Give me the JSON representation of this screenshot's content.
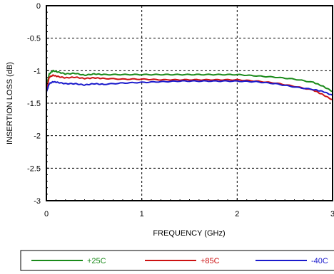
{
  "chart_data": {
    "type": "line",
    "xlabel": "FREQUENCY (GHz)",
    "ylabel": "INSERTION LOSS (dB)",
    "xlim": [
      0,
      3
    ],
    "ylim": [
      -3,
      0
    ],
    "x_ticks": [
      "0",
      "1",
      "2",
      "3"
    ],
    "y_ticks": [
      "0",
      "-0.5",
      "-1",
      "-1.5",
      "-2",
      "-2.5",
      "-3"
    ],
    "grid": true,
    "legend_position": "bottom",
    "series": [
      {
        "name": "+25C",
        "color": "#1a8a1a",
        "x": [
          0.0,
          0.03,
          0.07,
          0.12,
          0.2,
          0.3,
          0.4,
          0.5,
          0.6,
          0.8,
          1.0,
          1.2,
          1.4,
          1.6,
          1.8,
          2.0,
          2.2,
          2.4,
          2.6,
          2.8,
          2.9,
          3.0
        ],
        "y": [
          -1.25,
          -1.05,
          -1.0,
          -1.02,
          -1.05,
          -1.04,
          -1.07,
          -1.05,
          -1.06,
          -1.06,
          -1.06,
          -1.06,
          -1.06,
          -1.06,
          -1.06,
          -1.06,
          -1.08,
          -1.1,
          -1.13,
          -1.18,
          -1.24,
          -1.32
        ]
      },
      {
        "name": "+85C",
        "color": "#cc1111",
        "x": [
          0.0,
          0.03,
          0.07,
          0.12,
          0.2,
          0.3,
          0.4,
          0.5,
          0.6,
          0.8,
          1.0,
          1.2,
          1.4,
          1.6,
          1.8,
          2.0,
          2.2,
          2.4,
          2.6,
          2.8,
          2.9,
          3.0
        ],
        "y": [
          -1.3,
          -1.1,
          -1.07,
          -1.09,
          -1.11,
          -1.1,
          -1.12,
          -1.11,
          -1.12,
          -1.13,
          -1.13,
          -1.14,
          -1.14,
          -1.14,
          -1.14,
          -1.14,
          -1.16,
          -1.19,
          -1.24,
          -1.3,
          -1.37,
          -1.45
        ]
      },
      {
        "name": "-40C",
        "color": "#1a1acc",
        "x": [
          0.0,
          0.03,
          0.07,
          0.12,
          0.2,
          0.3,
          0.4,
          0.5,
          0.6,
          0.8,
          1.0,
          1.2,
          1.4,
          1.6,
          1.8,
          2.0,
          2.2,
          2.4,
          2.6,
          2.8,
          2.9,
          3.0
        ],
        "y": [
          -1.33,
          -1.2,
          -1.17,
          -1.18,
          -1.2,
          -1.2,
          -1.22,
          -1.2,
          -1.21,
          -1.19,
          -1.18,
          -1.17,
          -1.16,
          -1.16,
          -1.16,
          -1.16,
          -1.17,
          -1.2,
          -1.25,
          -1.29,
          -1.32,
          -1.38
        ]
      }
    ]
  }
}
